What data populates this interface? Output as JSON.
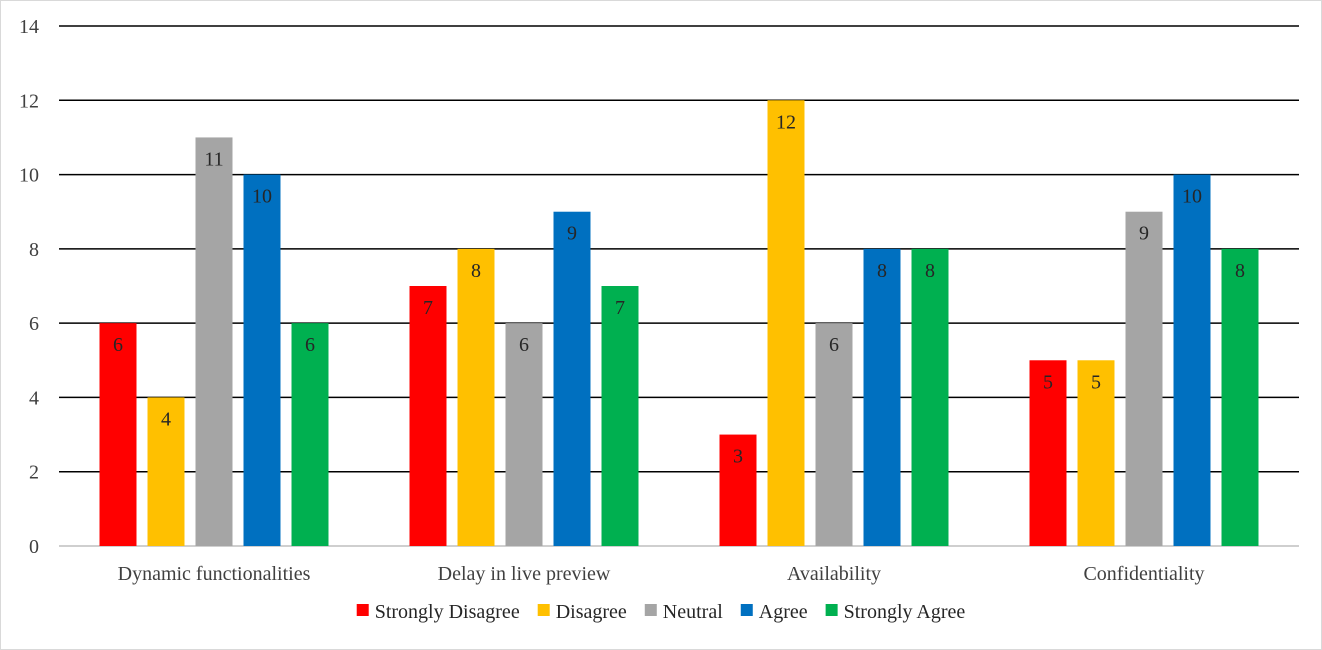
{
  "chart_data": {
    "type": "bar",
    "title": "",
    "xlabel": "",
    "ylabel": "",
    "ylim": [
      0,
      14
    ],
    "yticks": [
      0,
      2,
      4,
      6,
      8,
      10,
      12,
      14
    ],
    "grid": true,
    "legend_position": "bottom",
    "categories": [
      "Dynamic functionalities",
      "Delay in live preview",
      "Availability",
      "Confidentiality"
    ],
    "series": [
      {
        "name": "Strongly Disagree",
        "color": "#ff0000",
        "values": [
          6,
          7,
          3,
          5
        ]
      },
      {
        "name": "Disagree",
        "color": "#ffc000",
        "values": [
          4,
          8,
          12,
          5
        ]
      },
      {
        "name": "Neutral",
        "color": "#a5a5a5",
        "values": [
          11,
          6,
          6,
          9
        ]
      },
      {
        "name": "Agree",
        "color": "#0070c0",
        "values": [
          10,
          9,
          8,
          10
        ]
      },
      {
        "name": "Strongly Agree",
        "color": "#00b050",
        "values": [
          6,
          7,
          8,
          8
        ]
      }
    ]
  }
}
